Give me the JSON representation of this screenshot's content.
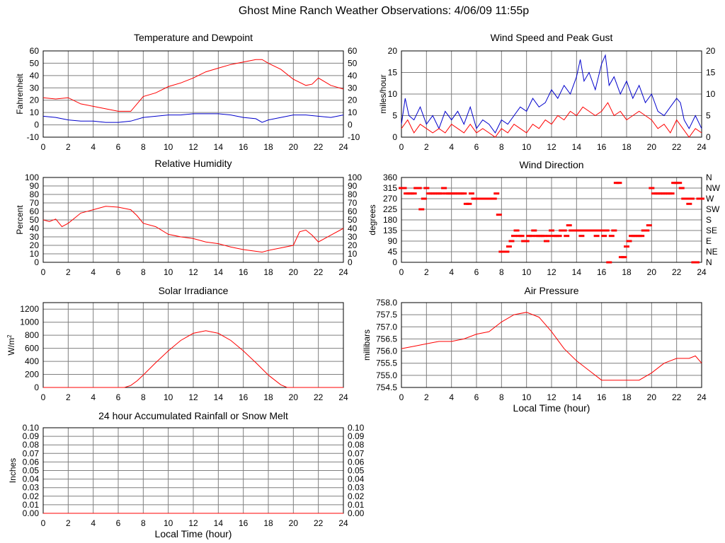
{
  "title": "Ghost Mine Ranch Weather Observations: 4/06/09 11:55p",
  "colors": {
    "primary": "#ff0000",
    "secondary": "#0000cc",
    "grid": "#7f7f7f"
  },
  "chart_data": [
    {
      "id": "temp",
      "type": "line",
      "title": "Temperature and Dewpoint",
      "xlabel": "",
      "ylabel": "Fahrenheit",
      "xlim": [
        0,
        24
      ],
      "ylim": [
        -10,
        60
      ],
      "yticks": [
        "-10",
        "0",
        "10",
        "20",
        "30",
        "40",
        "50",
        "60"
      ],
      "yticks_right": [
        "-10",
        "0",
        "10",
        "20",
        "30",
        "40",
        "50",
        "60"
      ],
      "xticks": [
        "0",
        "2",
        "4",
        "6",
        "8",
        "10",
        "12",
        "14",
        "16",
        "18",
        "20",
        "22",
        "24"
      ],
      "grid": true,
      "series": [
        {
          "color": "#ff0000",
          "x": [
            0,
            1,
            2,
            3,
            4,
            5,
            6,
            7,
            8,
            9,
            10,
            11,
            12,
            13,
            14,
            15,
            16,
            17,
            17.5,
            18,
            19,
            20,
            21,
            21.5,
            22,
            23,
            24
          ],
          "y": [
            22,
            21,
            22,
            17,
            15,
            13,
            11,
            11,
            23,
            26,
            31,
            34,
            38,
            43,
            46,
            49,
            51,
            53,
            53,
            50,
            45,
            37,
            32,
            33,
            38,
            32,
            29
          ]
        },
        {
          "color": "#0000cc",
          "x": [
            0,
            1,
            2,
            3,
            4,
            5,
            6,
            7,
            8,
            9,
            10,
            11,
            12,
            13,
            14,
            15,
            16,
            17,
            17.5,
            18,
            19,
            20,
            21,
            22,
            23,
            24
          ],
          "y": [
            7,
            6,
            4,
            3,
            3,
            2,
            2,
            3,
            6,
            7,
            8,
            8,
            9,
            9,
            9,
            8,
            6,
            5,
            2,
            4,
            6,
            8,
            8,
            7,
            6,
            8
          ]
        }
      ]
    },
    {
      "id": "wind",
      "type": "line",
      "title": "Wind Speed and Peak Gust",
      "xlabel": "",
      "ylabel": "miles/hour",
      "xlim": [
        0,
        24
      ],
      "ylim": [
        0,
        20
      ],
      "yticks": [
        "0",
        "5",
        "10",
        "15",
        "20"
      ],
      "yticks_right": [
        "0",
        "5",
        "10",
        "15",
        "20"
      ],
      "xticks": [
        "0",
        "2",
        "4",
        "6",
        "8",
        "10",
        "12",
        "14",
        "16",
        "18",
        "20",
        "22",
        "24"
      ],
      "grid": true,
      "series": [
        {
          "color": "#0000cc",
          "x": [
            0,
            0.3,
            0.6,
            1,
            1.5,
            2,
            2.5,
            3,
            3.5,
            4,
            4.5,
            5,
            5.5,
            6,
            6.5,
            7,
            7.5,
            8,
            8.5,
            9,
            9.5,
            10,
            10.5,
            11,
            11.5,
            12,
            12.5,
            13,
            13.5,
            14,
            14.3,
            14.6,
            15,
            15.5,
            16,
            16.3,
            16.6,
            17,
            17.5,
            18,
            18.5,
            19,
            19.5,
            20,
            20.5,
            21,
            21.5,
            22,
            22.3,
            22.6,
            23,
            23.5,
            24
          ],
          "y": [
            3,
            9,
            5,
            4,
            7,
            3,
            5,
            2,
            6,
            4,
            6,
            3,
            7,
            2,
            4,
            3,
            1,
            4,
            3,
            5,
            7,
            6,
            9,
            7,
            8,
            11,
            9,
            12,
            10,
            14,
            18,
            13,
            15,
            11,
            17,
            19,
            12,
            14,
            10,
            13,
            9,
            12,
            8,
            10,
            6,
            5,
            7,
            9,
            8,
            4,
            2,
            5,
            2
          ]
        },
        {
          "color": "#ff0000",
          "x": [
            0,
            0.5,
            1,
            1.5,
            2,
            2.5,
            3,
            3.5,
            4,
            4.5,
            5,
            5.5,
            6,
            6.5,
            7,
            7.5,
            8,
            8.5,
            9,
            9.5,
            10,
            10.5,
            11,
            11.5,
            12,
            12.5,
            13,
            13.5,
            14,
            14.5,
            15,
            15.5,
            16,
            16.5,
            17,
            17.5,
            18,
            18.5,
            19,
            19.5,
            20,
            20.5,
            21,
            21.5,
            22,
            22.5,
            23,
            23.5,
            24
          ],
          "y": [
            2,
            4,
            1,
            3,
            2,
            1,
            2,
            1,
            3,
            2,
            1,
            3,
            1,
            2,
            1,
            0,
            2,
            1,
            3,
            2,
            1,
            3,
            2,
            4,
            3,
            5,
            4,
            6,
            5,
            7,
            6,
            5,
            6,
            8,
            5,
            6,
            4,
            5,
            6,
            5,
            4,
            2,
            3,
            1,
            4,
            2,
            0,
            2,
            1
          ]
        }
      ]
    },
    {
      "id": "humidity",
      "type": "line",
      "title": "Relative Humidity",
      "xlabel": "",
      "ylabel": "Percent",
      "xlim": [
        0,
        24
      ],
      "ylim": [
        0,
        100
      ],
      "yticks": [
        "0",
        "10",
        "20",
        "30",
        "40",
        "50",
        "60",
        "70",
        "80",
        "90",
        "100"
      ],
      "yticks_right": [
        "0",
        "10",
        "20",
        "30",
        "40",
        "50",
        "60",
        "70",
        "80",
        "90",
        "100"
      ],
      "xticks": [
        "0",
        "2",
        "4",
        "6",
        "8",
        "10",
        "12",
        "14",
        "16",
        "18",
        "20",
        "22",
        "24"
      ],
      "grid": true,
      "series": [
        {
          "color": "#ff0000",
          "x": [
            0,
            0.5,
            1,
            1.5,
            2,
            2.5,
            3,
            4,
            5,
            6,
            7,
            7.5,
            8,
            9,
            10,
            11,
            12,
            13,
            14,
            15,
            16,
            17,
            17.5,
            18,
            19,
            20,
            20.5,
            21,
            21.5,
            22,
            23,
            24
          ],
          "y": [
            50,
            48,
            51,
            42,
            46,
            52,
            58,
            62,
            66,
            65,
            62,
            55,
            46,
            42,
            33,
            30,
            28,
            24,
            22,
            18,
            15,
            13,
            12,
            14,
            17,
            20,
            36,
            38,
            32,
            24,
            32,
            40
          ]
        }
      ]
    },
    {
      "id": "winddir",
      "type": "scatter",
      "title": "Wind Direction",
      "xlabel": "",
      "ylabel": "degrees",
      "xlim": [
        0,
        24
      ],
      "ylim": [
        0,
        360
      ],
      "yticks": [
        "0",
        "45",
        "90",
        "135",
        "180",
        "225",
        "270",
        "315",
        "360"
      ],
      "yticks_right": [
        "N",
        "NE",
        "E",
        "SE",
        "S",
        "SW",
        "W",
        "NW",
        "N"
      ],
      "xticks": [
        "0",
        "2",
        "4",
        "6",
        "8",
        "10",
        "12",
        "14",
        "16",
        "18",
        "20",
        "22",
        "24"
      ],
      "grid": true,
      "series": [
        {
          "color": "#ff0000",
          "x": [
            0,
            0.2,
            0.4,
            0.6,
            0.8,
            1.0,
            1.2,
            1.4,
            1.6,
            1.8,
            2.0,
            2.2,
            2.4,
            2.6,
            2.8,
            3.0,
            3.2,
            3.4,
            3.6,
            3.8,
            4.0,
            4.2,
            4.4,
            4.6,
            4.8,
            5.0,
            5.2,
            5.4,
            5.6,
            5.8,
            6.0,
            6.2,
            6.4,
            6.6,
            6.8,
            7.0,
            7.2,
            7.4,
            7.6,
            7.8,
            8.0,
            8.2,
            8.4,
            8.6,
            8.8,
            9.0,
            9.2,
            9.4,
            9.6,
            9.8,
            10.0,
            10.2,
            10.4,
            10.6,
            10.8,
            11.0,
            11.2,
            11.4,
            11.6,
            11.8,
            12.0,
            12.2,
            12.4,
            12.6,
            12.8,
            13.0,
            13.2,
            13.4,
            13.6,
            13.8,
            14.0,
            14.2,
            14.4,
            14.6,
            14.8,
            15.0,
            15.2,
            15.4,
            15.6,
            15.8,
            16.0,
            16.2,
            16.4,
            16.6,
            16.8,
            17.0,
            17.2,
            17.4,
            17.6,
            17.8,
            18.0,
            18.2,
            18.4,
            18.6,
            18.8,
            19.0,
            19.2,
            19.4,
            19.6,
            19.8,
            20.0,
            20.2,
            20.4,
            20.6,
            20.8,
            21.0,
            21.2,
            21.4,
            21.6,
            21.8,
            22.0,
            22.2,
            22.4,
            22.6,
            22.8,
            23.0,
            23.2,
            23.4,
            23.6,
            23.8,
            24.0
          ],
          "y": [
            315,
            315,
            292,
            292,
            292,
            292,
            315,
            315,
            225,
            270,
            315,
            292,
            292,
            292,
            292,
            292,
            292,
            315,
            292,
            292,
            292,
            292,
            292,
            292,
            292,
            292,
            248,
            248,
            292,
            270,
            270,
            270,
            270,
            270,
            270,
            270,
            270,
            270,
            292,
            202,
            45,
            45,
            45,
            67,
            90,
            112,
            135,
            112,
            112,
            90,
            90,
            112,
            112,
            135,
            112,
            112,
            112,
            112,
            90,
            112,
            135,
            112,
            112,
            112,
            135,
            135,
            112,
            157,
            135,
            135,
            135,
            135,
            112,
            135,
            135,
            135,
            135,
            135,
            112,
            135,
            135,
            112,
            135,
            0,
            112,
            135,
            337,
            337,
            22,
            22,
            67,
            90,
            112,
            112,
            112,
            112,
            112,
            135,
            135,
            157,
            315,
            292,
            292,
            292,
            292,
            292,
            292,
            292,
            292,
            337,
            337,
            337,
            315,
            270,
            270,
            248,
            270,
            0,
            0,
            270,
            270
          ],
          "ruler": ""
        }
      ]
    },
    {
      "id": "solar",
      "type": "line",
      "title": "Solar Irradiance",
      "xlabel": "",
      "ylabel": "W/m",
      "ylabel_sup": "2",
      "xlim": [
        0,
        24
      ],
      "ylim": [
        0,
        1300
      ],
      "yticks": [
        "0",
        "200",
        "400",
        "600",
        "800",
        "1000",
        "1200"
      ],
      "yticks_values": [
        0,
        200,
        400,
        600,
        800,
        1000,
        1200
      ],
      "yticks_right": [],
      "xticks": [
        "0",
        "2",
        "4",
        "6",
        "8",
        "10",
        "12",
        "14",
        "16",
        "18",
        "20",
        "22",
        "24"
      ],
      "grid": true,
      "series": [
        {
          "color": "#ff0000",
          "x": [
            0,
            6.5,
            7,
            7.5,
            8,
            9,
            10,
            11,
            12,
            13,
            14,
            15,
            16,
            17,
            18,
            19,
            19.5,
            20,
            24
          ],
          "y": [
            0,
            0,
            30,
            100,
            190,
            380,
            560,
            720,
            830,
            870,
            830,
            720,
            560,
            380,
            190,
            40,
            0,
            0,
            0
          ]
        }
      ]
    },
    {
      "id": "pressure",
      "type": "line",
      "title": "Air Pressure",
      "xlabel": "Local Time (hour)",
      "ylabel": "millibars",
      "xlim": [
        0,
        24
      ],
      "ylim": [
        754.5,
        758.0
      ],
      "yticks": [
        "754.5",
        "755.0",
        "755.5",
        "756.0",
        "756.5",
        "757.0",
        "757.5",
        "758.0"
      ],
      "yticks_values": [
        754.5,
        755.0,
        755.5,
        756.0,
        756.5,
        757.0,
        757.5,
        758.0
      ],
      "yticks_right": [],
      "xticks": [
        "0",
        "2",
        "4",
        "6",
        "8",
        "10",
        "12",
        "14",
        "16",
        "18",
        "20",
        "22",
        "24"
      ],
      "grid": true,
      "series": [
        {
          "color": "#ff0000",
          "x": [
            0,
            1,
            2,
            3,
            4,
            5,
            6,
            7,
            8,
            9,
            10,
            11,
            12,
            13,
            14,
            15,
            16,
            17,
            18,
            19,
            20,
            21,
            22,
            23,
            23.5,
            24
          ],
          "y": [
            756.1,
            756.2,
            756.3,
            756.4,
            756.4,
            756.5,
            756.7,
            756.8,
            757.2,
            757.5,
            757.6,
            757.4,
            756.8,
            756.1,
            755.6,
            755.2,
            754.8,
            754.8,
            754.8,
            754.8,
            755.1,
            755.5,
            755.7,
            755.7,
            755.8,
            755.5
          ]
        }
      ]
    },
    {
      "id": "rain",
      "type": "line",
      "title": "24 hour Accumulated Rainfall or Snow Melt",
      "xlabel": "Local Time (hour)",
      "ylabel": "Inches",
      "xlim": [
        0,
        24
      ],
      "ylim": [
        0,
        0.1
      ],
      "yticks": [
        "0.00",
        "0.01",
        "0.02",
        "0.03",
        "0.04",
        "0.05",
        "0.06",
        "0.07",
        "0.08",
        "0.09",
        "0.10"
      ],
      "yticks_right": [
        "0.00",
        "0.01",
        "0.02",
        "0.03",
        "0.04",
        "0.05",
        "0.06",
        "0.07",
        "0.08",
        "0.09",
        "0.10"
      ],
      "xticks": [
        "0",
        "2",
        "4",
        "6",
        "8",
        "10",
        "12",
        "14",
        "16",
        "18",
        "20",
        "22",
        "24"
      ],
      "grid": true,
      "series": [
        {
          "color": "#ff0000",
          "x": [
            0,
            24
          ],
          "y": [
            0,
            0
          ]
        }
      ]
    }
  ]
}
